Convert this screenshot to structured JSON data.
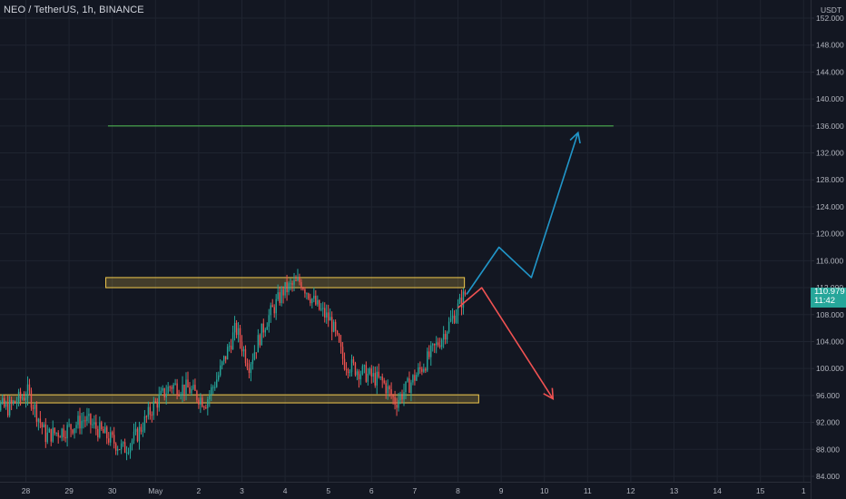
{
  "header": {
    "title": "NEO / TetherUS, 1h, BINANCE"
  },
  "axis": {
    "currency_label": "USDT"
  },
  "price_tag": {
    "price": "110.979",
    "countdown": "11:42",
    "color": "#26a69a"
  },
  "colors": {
    "background": "#131722",
    "grid": "#1f2430",
    "up": "#26a69a",
    "down": "#ef5350",
    "axis_text": "#b2b5be",
    "zone": "#f2c94c",
    "target": "#4caf50",
    "bull_arrow": "#2196c9",
    "bear_arrow": "#f05252"
  },
  "chart_data": {
    "type": "candlestick",
    "title": "NEO / TetherUS, 1h, BINANCE",
    "x_ticks": [
      "28",
      "29",
      "30",
      "May",
      "2",
      "3",
      "4",
      "5",
      "6",
      "7",
      "8",
      "9",
      "10",
      "11",
      "12",
      "13",
      "14",
      "15",
      "1"
    ],
    "y_ticks": [
      "152.000",
      "148.000",
      "144.000",
      "140.000",
      "136.000",
      "132.000",
      "128.000",
      "124.000",
      "120.000",
      "116.000",
      "112.000",
      "108.000",
      "104.000",
      "100.000",
      "96.000",
      "92.000",
      "88.000",
      "84.000"
    ],
    "ylim": [
      83.4,
      153.5
    ],
    "price_path": [
      {
        "day": 27.0,
        "price": 96.0
      },
      {
        "day": 27.6,
        "price": 94.0
      },
      {
        "day": 28.1,
        "price": 96.5
      },
      {
        "day": 28.5,
        "price": 90.0
      },
      {
        "day": 29.0,
        "price": 91.0
      },
      {
        "day": 29.4,
        "price": 92.5
      },
      {
        "day": 29.8,
        "price": 90.5
      },
      {
        "day": 30.3,
        "price": 88.0
      },
      {
        "day": 30.6,
        "price": 90.0
      },
      {
        "day": 31.0,
        "price": 94.5
      },
      {
        "day": 31.4,
        "price": 97.5
      },
      {
        "day": 31.8,
        "price": 97.0
      },
      {
        "day": 32.2,
        "price": 95.0
      },
      {
        "day": 32.5,
        "price": 99.0
      },
      {
        "day": 32.9,
        "price": 106.0
      },
      {
        "day": 33.2,
        "price": 100.5
      },
      {
        "day": 33.6,
        "price": 107.0
      },
      {
        "day": 34.0,
        "price": 111.5
      },
      {
        "day": 34.4,
        "price": 113.0
      },
      {
        "day": 34.8,
        "price": 109.0
      },
      {
        "day": 35.1,
        "price": 107.0
      },
      {
        "day": 35.4,
        "price": 101.0
      },
      {
        "day": 35.8,
        "price": 99.5
      },
      {
        "day": 36.3,
        "price": 98.0
      },
      {
        "day": 36.6,
        "price": 95.0
      },
      {
        "day": 36.9,
        "price": 97.5
      },
      {
        "day": 37.3,
        "price": 101.0
      },
      {
        "day": 37.7,
        "price": 105.0
      },
      {
        "day": 38.0,
        "price": 108.5
      },
      {
        "day": 38.2,
        "price": 111.0
      }
    ],
    "zones": [
      {
        "y_low": 112.0,
        "y_high": 113.5,
        "x_start": 29.85,
        "x_end": 38.15
      },
      {
        "y_low": 94.9,
        "y_high": 96.1,
        "x_start": 26.4,
        "x_end": 38.48
      }
    ],
    "target_line": {
      "y": 136.0,
      "x_start": 29.9,
      "x_end": 41.6
    },
    "bull_path": [
      {
        "x": 38.2,
        "y": 111.0
      },
      {
        "x": 38.95,
        "y": 118.0
      },
      {
        "x": 39.7,
        "y": 113.5
      },
      {
        "x": 40.78,
        "y": 135.0
      }
    ],
    "bear_path": [
      {
        "x": 38.0,
        "y": 109.0
      },
      {
        "x": 38.55,
        "y": 112.0
      },
      {
        "x": 40.2,
        "y": 95.5
      }
    ],
    "last_price": 110.979
  }
}
